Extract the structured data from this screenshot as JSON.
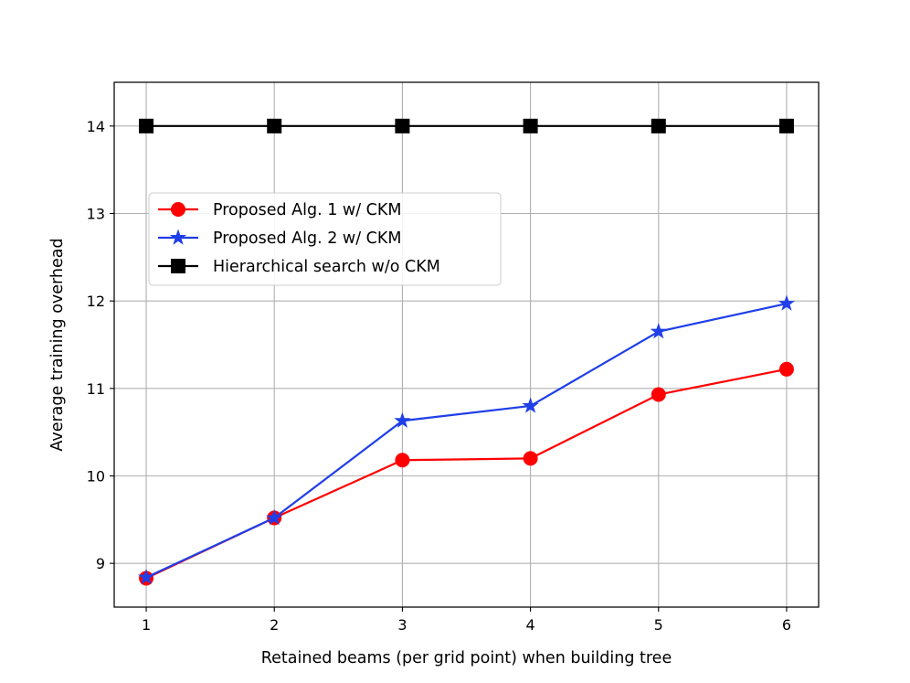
{
  "chart_data": {
    "type": "line",
    "title": "",
    "xlabel": "Retained beams (per grid point) when building tree",
    "ylabel": "Average training overhead",
    "x": [
      1,
      2,
      3,
      4,
      5,
      6
    ],
    "xlim": [
      0.75,
      6.25
    ],
    "ylim": [
      8.5,
      14.5
    ],
    "xticks": [
      "1",
      "2",
      "3",
      "4",
      "5",
      "6"
    ],
    "yticks": [
      "9",
      "10",
      "11",
      "12",
      "13",
      "14"
    ],
    "grid": true,
    "legend_position": "upper-left",
    "series": [
      {
        "name": "Proposed Alg. 1 w/ CKM",
        "color": "#ff0000",
        "marker": "circle",
        "values": [
          8.83,
          9.52,
          10.18,
          10.2,
          10.93,
          11.22
        ]
      },
      {
        "name": "Proposed Alg. 2 w/ CKM",
        "color": "#1f3fe8",
        "marker": "star",
        "values": [
          8.84,
          9.52,
          10.63,
          10.8,
          11.65,
          11.97
        ]
      },
      {
        "name": "Hierarchical search w/o CKM",
        "color": "#000000",
        "marker": "square",
        "values": [
          14,
          14,
          14,
          14,
          14,
          14
        ]
      }
    ]
  }
}
